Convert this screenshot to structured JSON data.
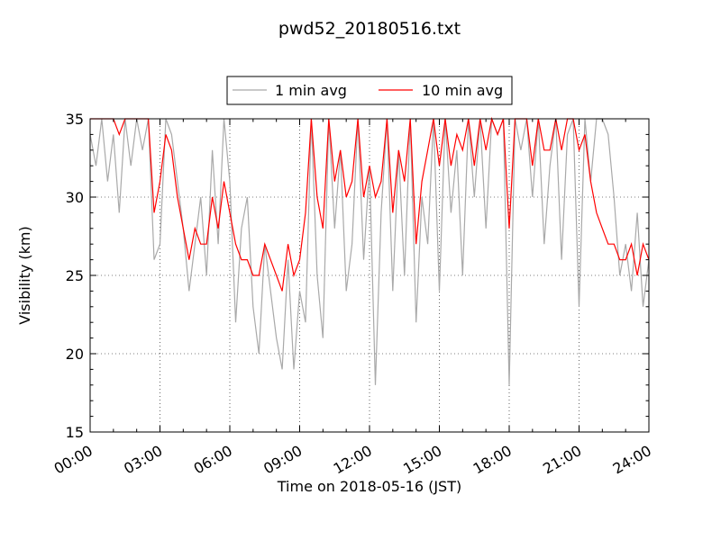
{
  "chart_data": {
    "type": "line",
    "title": "pwd52_20180516.txt",
    "xlabel": "Time on 2018-05-16 (JST)",
    "ylabel": "Visibility (km)",
    "xlim": [
      "00:00",
      "24:00"
    ],
    "ylim": [
      15,
      35
    ],
    "xticks": [
      "00:00",
      "03:00",
      "06:00",
      "09:00",
      "12:00",
      "15:00",
      "18:00",
      "21:00",
      "24:00"
    ],
    "yticks": [
      "15",
      "20",
      "25",
      "30",
      "35"
    ],
    "grid": true,
    "legend_position": "top-center",
    "series": [
      {
        "name": "1 min avg",
        "color": "#a9a9a9",
        "x_hours": [
          0,
          0.25,
          0.5,
          0.75,
          1.0,
          1.25,
          1.5,
          1.75,
          2.0,
          2.25,
          2.5,
          2.75,
          3.0,
          3.25,
          3.5,
          3.75,
          4.0,
          4.25,
          4.5,
          4.75,
          5.0,
          5.25,
          5.5,
          5.75,
          6.0,
          6.25,
          6.5,
          6.75,
          7.0,
          7.25,
          7.5,
          7.75,
          8.0,
          8.25,
          8.5,
          8.75,
          9.0,
          9.25,
          9.5,
          9.75,
          10.0,
          10.25,
          10.5,
          10.75,
          11.0,
          11.25,
          11.5,
          11.75,
          12.0,
          12.25,
          12.5,
          12.75,
          13.0,
          13.25,
          13.5,
          13.75,
          14.0,
          14.25,
          14.5,
          14.75,
          15.0,
          15.25,
          15.5,
          15.75,
          16.0,
          16.25,
          16.5,
          16.75,
          17.0,
          17.25,
          17.5,
          17.75,
          18.0,
          18.25,
          18.5,
          18.75,
          19.0,
          19.25,
          19.5,
          19.75,
          20.0,
          20.25,
          20.5,
          20.75,
          21.0,
          21.25,
          21.5,
          21.75,
          22.0,
          22.25,
          22.5,
          22.75,
          23.0,
          23.25,
          23.5,
          23.75,
          24.0
        ],
        "values": [
          34,
          32,
          35,
          31,
          34,
          29,
          35,
          32,
          35,
          33,
          35,
          26,
          27,
          35,
          34,
          31,
          28,
          24,
          27,
          30,
          25,
          33,
          27,
          35,
          31,
          22,
          28,
          30,
          23,
          20,
          27,
          24,
          21,
          19,
          26,
          19,
          24,
          22,
          35,
          25,
          21,
          35,
          28,
          33,
          24,
          27,
          35,
          26,
          32,
          18,
          29,
          35,
          24,
          33,
          25,
          35,
          22,
          30,
          27,
          35,
          24,
          35,
          29,
          33,
          25,
          35,
          30,
          35,
          28,
          35,
          34,
          35,
          18,
          35,
          33,
          35,
          30,
          35,
          27,
          32,
          35,
          26,
          34,
          35,
          23,
          35,
          31,
          35,
          35,
          34,
          30,
          25,
          27,
          24,
          29,
          23,
          26
        ]
      },
      {
        "name": "10 min avg",
        "color": "#ff0000",
        "x_hours": [
          0,
          0.25,
          0.5,
          0.75,
          1.0,
          1.25,
          1.5,
          1.75,
          2.0,
          2.25,
          2.5,
          2.75,
          3.0,
          3.25,
          3.5,
          3.75,
          4.0,
          4.25,
          4.5,
          4.75,
          5.0,
          5.25,
          5.5,
          5.75,
          6.0,
          6.25,
          6.5,
          6.75,
          7.0,
          7.25,
          7.5,
          7.75,
          8.0,
          8.25,
          8.5,
          8.75,
          9.0,
          9.25,
          9.5,
          9.75,
          10.0,
          10.25,
          10.5,
          10.75,
          11.0,
          11.25,
          11.5,
          11.75,
          12.0,
          12.25,
          12.5,
          12.75,
          13.0,
          13.25,
          13.5,
          13.75,
          14.0,
          14.25,
          14.5,
          14.75,
          15.0,
          15.25,
          15.5,
          15.75,
          16.0,
          16.25,
          16.5,
          16.75,
          17.0,
          17.25,
          17.5,
          17.75,
          18.0,
          18.25,
          18.5,
          18.75,
          19.0,
          19.25,
          19.5,
          19.75,
          20.0,
          20.25,
          20.5,
          20.75,
          21.0,
          21.25,
          21.5,
          21.75,
          22.0,
          22.25,
          22.5,
          22.75,
          23.0,
          23.25,
          23.5,
          23.75,
          24.0
        ],
        "values": [
          35,
          35,
          35,
          35,
          35,
          34,
          35,
          35,
          35,
          35,
          35,
          29,
          31,
          34,
          33,
          30,
          28,
          26,
          28,
          27,
          27,
          30,
          28,
          31,
          29,
          27,
          26,
          26,
          25,
          25,
          27,
          26,
          25,
          24,
          27,
          25,
          26,
          29,
          35,
          30,
          28,
          35,
          31,
          33,
          30,
          31,
          35,
          30,
          32,
          30,
          31,
          35,
          29,
          33,
          31,
          35,
          27,
          31,
          33,
          35,
          32,
          35,
          32,
          34,
          33,
          35,
          32,
          35,
          33,
          35,
          34,
          35,
          28,
          35,
          35,
          35,
          32,
          35,
          33,
          33,
          35,
          33,
          35,
          35,
          33,
          34,
          31,
          29,
          28,
          27,
          27,
          26,
          26,
          27,
          25,
          27,
          26
        ]
      }
    ]
  }
}
